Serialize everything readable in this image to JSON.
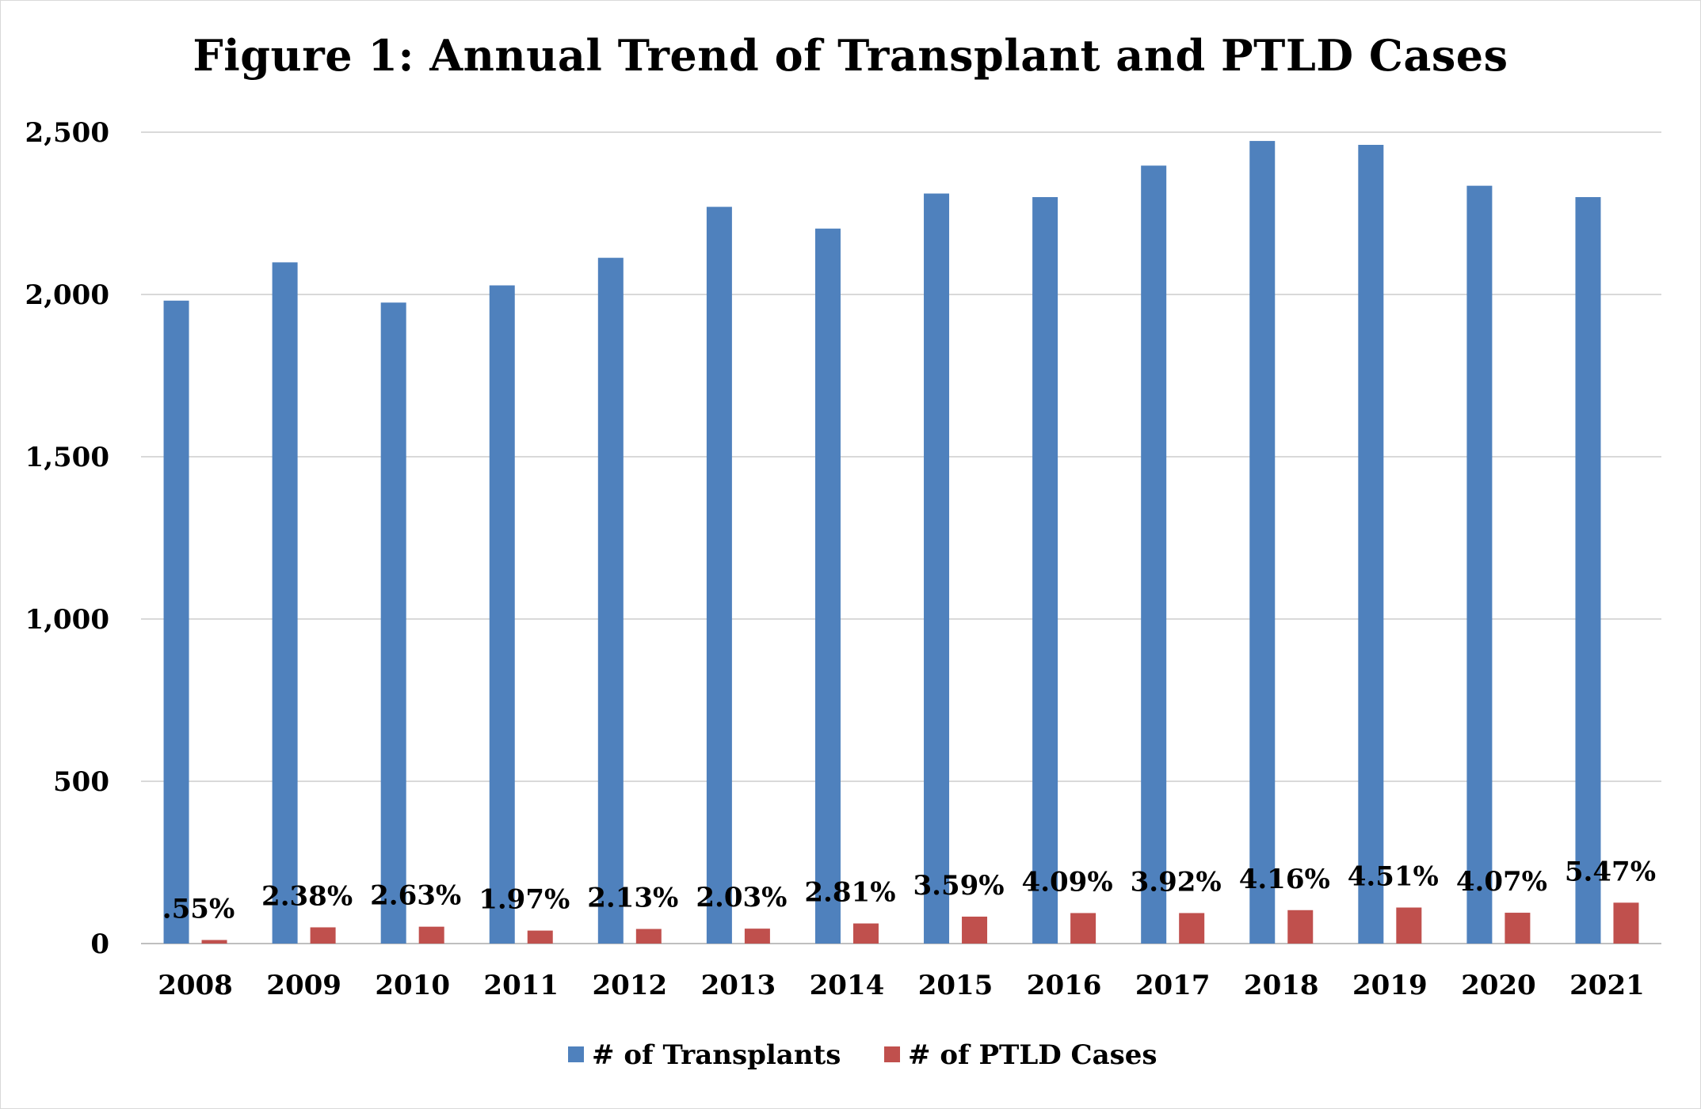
{
  "chart_data": {
    "type": "bar",
    "title": "Figure 1: Annual Trend of Transplant and PTLD Cases",
    "categories": [
      "2008",
      "2009",
      "2010",
      "2011",
      "2012",
      "2013",
      "2014",
      "2015",
      "2016",
      "2017",
      "2018",
      "2019",
      "2020",
      "2021"
    ],
    "series": [
      {
        "name": "# of Transplants",
        "color": "#4f81bd",
        "values": [
          1981,
          2099,
          1975,
          2028,
          2113,
          2270,
          2203,
          2311,
          2300,
          2397,
          2473,
          2461,
          2335,
          2300
        ]
      },
      {
        "name": "# of PTLD Cases",
        "color": "#c0504d",
        "values": [
          11,
          50,
          52,
          40,
          45,
          46,
          62,
          83,
          94,
          94,
          103,
          111,
          95,
          126
        ]
      }
    ],
    "data_labels": [
      ".55%",
      "2.38%",
      "2.63%",
      "1.97%",
      "2.13%",
      "2.03%",
      "2.81%",
      "3.59%",
      "4.09%",
      "3.92%",
      "4.16%",
      "4.51%",
      "4.07%",
      "5.47%"
    ],
    "y_ticks": [
      "0",
      "500",
      "1,000",
      "1,500",
      "2,000",
      "2,500"
    ],
    "ylim": [
      0,
      2500
    ],
    "xlabel": "",
    "ylabel": "",
    "grid": true,
    "legend_position": "bottom"
  }
}
